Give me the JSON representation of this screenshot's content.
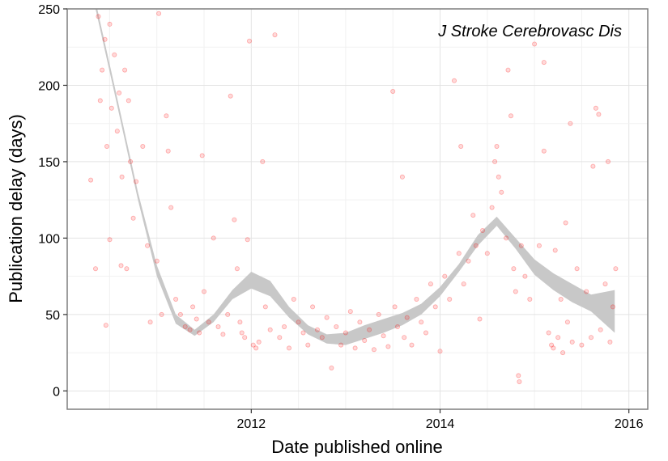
{
  "chart_data": {
    "type": "scatter",
    "title": "",
    "annotation": "J Stroke Cerebrovasc Dis",
    "xlabel": "Date published online",
    "ylabel": "Publication delay (days)",
    "xlim": [
      2010.05,
      2016.2
    ],
    "ylim": [
      -12,
      250
    ],
    "x_ticks": [
      2012,
      2014,
      2016
    ],
    "x_tick_labels": [
      "2012",
      "2014",
      "2016"
    ],
    "y_ticks": [
      0,
      50,
      100,
      150,
      200,
      250
    ],
    "y_tick_labels": [
      "0",
      "50",
      "100",
      "150",
      "200",
      "250"
    ],
    "grid": true,
    "point_color": "#ff0000",
    "band_color": "#c8c8c8",
    "smooth_band": {
      "x": [
        2010.35,
        2010.55,
        2010.8,
        2011.0,
        2011.2,
        2011.4,
        2011.6,
        2011.8,
        2012.0,
        2012.2,
        2012.4,
        2012.6,
        2012.8,
        2013.0,
        2013.2,
        2013.4,
        2013.6,
        2013.8,
        2014.0,
        2014.2,
        2014.4,
        2014.6,
        2014.8,
        2015.0,
        2015.2,
        2015.4,
        2015.6,
        2015.85
      ],
      "lower": [
        250,
        195,
        125,
        75,
        44,
        36,
        45,
        60,
        67,
        62,
        48,
        37,
        31,
        30,
        34,
        38,
        43,
        50,
        62,
        78,
        95,
        108,
        93,
        76,
        66,
        58,
        52,
        38
      ],
      "upper": [
        255,
        200,
        130,
        82,
        50,
        40,
        50,
        66,
        78,
        72,
        55,
        43,
        37,
        38,
        43,
        47,
        51,
        57,
        68,
        83,
        102,
        114,
        100,
        86,
        77,
        70,
        63,
        66
      ]
    },
    "points": [
      {
        "x": 2010.38,
        "y": 245
      },
      {
        "x": 2010.4,
        "y": 190
      },
      {
        "x": 2010.42,
        "y": 210
      },
      {
        "x": 2010.45,
        "y": 230
      },
      {
        "x": 2010.47,
        "y": 160
      },
      {
        "x": 2010.5,
        "y": 240
      },
      {
        "x": 2010.52,
        "y": 185
      },
      {
        "x": 2010.55,
        "y": 220
      },
      {
        "x": 2010.58,
        "y": 170
      },
      {
        "x": 2010.6,
        "y": 195
      },
      {
        "x": 2010.63,
        "y": 140
      },
      {
        "x": 2010.66,
        "y": 210
      },
      {
        "x": 2010.7,
        "y": 190
      },
      {
        "x": 2010.72,
        "y": 150
      },
      {
        "x": 2010.75,
        "y": 113
      },
      {
        "x": 2010.78,
        "y": 137
      },
      {
        "x": 2010.3,
        "y": 138
      },
      {
        "x": 2010.35,
        "y": 80
      },
      {
        "x": 2010.5,
        "y": 99
      },
      {
        "x": 2010.46,
        "y": 43
      },
      {
        "x": 2010.62,
        "y": 82
      },
      {
        "x": 2010.68,
        "y": 80
      },
      {
        "x": 2010.85,
        "y": 160
      },
      {
        "x": 2010.9,
        "y": 95
      },
      {
        "x": 2010.93,
        "y": 45
      },
      {
        "x": 2011.0,
        "y": 85
      },
      {
        "x": 2011.05,
        "y": 50
      },
      {
        "x": 2011.02,
        "y": 247
      },
      {
        "x": 2011.1,
        "y": 180
      },
      {
        "x": 2011.12,
        "y": 157
      },
      {
        "x": 2011.15,
        "y": 120
      },
      {
        "x": 2011.2,
        "y": 60
      },
      {
        "x": 2011.25,
        "y": 50
      },
      {
        "x": 2011.3,
        "y": 42
      },
      {
        "x": 2011.35,
        "y": 40
      },
      {
        "x": 2011.38,
        "y": 55
      },
      {
        "x": 2011.42,
        "y": 47
      },
      {
        "x": 2011.45,
        "y": 38
      },
      {
        "x": 2011.48,
        "y": 154
      },
      {
        "x": 2011.5,
        "y": 65
      },
      {
        "x": 2011.55,
        "y": 45
      },
      {
        "x": 2011.6,
        "y": 100
      },
      {
        "x": 2011.65,
        "y": 42
      },
      {
        "x": 2011.7,
        "y": 37
      },
      {
        "x": 2011.75,
        "y": 50
      },
      {
        "x": 2011.78,
        "y": 193
      },
      {
        "x": 2011.82,
        "y": 112
      },
      {
        "x": 2011.85,
        "y": 80
      },
      {
        "x": 2011.88,
        "y": 45
      },
      {
        "x": 2011.9,
        "y": 38
      },
      {
        "x": 2011.93,
        "y": 35
      },
      {
        "x": 2011.96,
        "y": 99
      },
      {
        "x": 2011.98,
        "y": 229
      },
      {
        "x": 2012.02,
        "y": 30
      },
      {
        "x": 2012.05,
        "y": 28
      },
      {
        "x": 2012.08,
        "y": 32
      },
      {
        "x": 2012.12,
        "y": 150
      },
      {
        "x": 2012.15,
        "y": 55
      },
      {
        "x": 2012.2,
        "y": 40
      },
      {
        "x": 2012.25,
        "y": 233
      },
      {
        "x": 2012.3,
        "y": 35
      },
      {
        "x": 2012.35,
        "y": 42
      },
      {
        "x": 2012.4,
        "y": 28
      },
      {
        "x": 2012.45,
        "y": 60
      },
      {
        "x": 2012.5,
        "y": 45
      },
      {
        "x": 2012.55,
        "y": 38
      },
      {
        "x": 2012.6,
        "y": 30
      },
      {
        "x": 2012.65,
        "y": 55
      },
      {
        "x": 2012.7,
        "y": 40
      },
      {
        "x": 2012.75,
        "y": 35
      },
      {
        "x": 2012.8,
        "y": 48
      },
      {
        "x": 2012.85,
        "y": 15
      },
      {
        "x": 2012.9,
        "y": 42
      },
      {
        "x": 2012.95,
        "y": 30
      },
      {
        "x": 2013.0,
        "y": 38
      },
      {
        "x": 2013.05,
        "y": 52
      },
      {
        "x": 2013.1,
        "y": 28
      },
      {
        "x": 2013.15,
        "y": 45
      },
      {
        "x": 2013.2,
        "y": 33
      },
      {
        "x": 2013.25,
        "y": 40
      },
      {
        "x": 2013.3,
        "y": 27
      },
      {
        "x": 2013.35,
        "y": 50
      },
      {
        "x": 2013.4,
        "y": 36
      },
      {
        "x": 2013.45,
        "y": 29
      },
      {
        "x": 2013.5,
        "y": 196
      },
      {
        "x": 2013.52,
        "y": 55
      },
      {
        "x": 2013.55,
        "y": 42
      },
      {
        "x": 2013.6,
        "y": 140
      },
      {
        "x": 2013.62,
        "y": 35
      },
      {
        "x": 2013.65,
        "y": 48
      },
      {
        "x": 2013.7,
        "y": 30
      },
      {
        "x": 2013.75,
        "y": 60
      },
      {
        "x": 2013.8,
        "y": 45
      },
      {
        "x": 2013.85,
        "y": 38
      },
      {
        "x": 2013.9,
        "y": 70
      },
      {
        "x": 2013.95,
        "y": 55
      },
      {
        "x": 2014.0,
        "y": 26
      },
      {
        "x": 2014.05,
        "y": 75
      },
      {
        "x": 2014.1,
        "y": 60
      },
      {
        "x": 2014.15,
        "y": 203
      },
      {
        "x": 2014.2,
        "y": 90
      },
      {
        "x": 2014.22,
        "y": 160
      },
      {
        "x": 2014.25,
        "y": 70
      },
      {
        "x": 2014.3,
        "y": 85
      },
      {
        "x": 2014.35,
        "y": 115
      },
      {
        "x": 2014.38,
        "y": 95
      },
      {
        "x": 2014.42,
        "y": 47
      },
      {
        "x": 2014.45,
        "y": 105
      },
      {
        "x": 2014.5,
        "y": 90
      },
      {
        "x": 2014.55,
        "y": 120
      },
      {
        "x": 2014.58,
        "y": 150
      },
      {
        "x": 2014.6,
        "y": 160
      },
      {
        "x": 2014.62,
        "y": 140
      },
      {
        "x": 2014.65,
        "y": 130
      },
      {
        "x": 2014.7,
        "y": 100
      },
      {
        "x": 2014.72,
        "y": 210
      },
      {
        "x": 2014.75,
        "y": 180
      },
      {
        "x": 2014.78,
        "y": 80
      },
      {
        "x": 2014.8,
        "y": 65
      },
      {
        "x": 2014.83,
        "y": 10
      },
      {
        "x": 2014.84,
        "y": 6
      },
      {
        "x": 2014.86,
        "y": 95
      },
      {
        "x": 2014.9,
        "y": 75
      },
      {
        "x": 2014.95,
        "y": 60
      },
      {
        "x": 2015.0,
        "y": 227
      },
      {
        "x": 2015.05,
        "y": 95
      },
      {
        "x": 2015.1,
        "y": 157
      },
      {
        "x": 2015.1,
        "y": 215
      },
      {
        "x": 2015.15,
        "y": 38
      },
      {
        "x": 2015.18,
        "y": 30
      },
      {
        "x": 2015.2,
        "y": 28
      },
      {
        "x": 2015.22,
        "y": 92
      },
      {
        "x": 2015.25,
        "y": 35
      },
      {
        "x": 2015.28,
        "y": 60
      },
      {
        "x": 2015.3,
        "y": 25
      },
      {
        "x": 2015.33,
        "y": 110
      },
      {
        "x": 2015.35,
        "y": 45
      },
      {
        "x": 2015.38,
        "y": 175
      },
      {
        "x": 2015.4,
        "y": 32
      },
      {
        "x": 2015.45,
        "y": 80
      },
      {
        "x": 2015.5,
        "y": 30
      },
      {
        "x": 2015.55,
        "y": 65
      },
      {
        "x": 2015.6,
        "y": 35
      },
      {
        "x": 2015.62,
        "y": 147
      },
      {
        "x": 2015.65,
        "y": 185
      },
      {
        "x": 2015.68,
        "y": 181
      },
      {
        "x": 2015.7,
        "y": 40
      },
      {
        "x": 2015.75,
        "y": 70
      },
      {
        "x": 2015.78,
        "y": 150
      },
      {
        "x": 2015.8,
        "y": 32
      },
      {
        "x": 2015.83,
        "y": 55
      },
      {
        "x": 2015.86,
        "y": 80
      }
    ]
  }
}
